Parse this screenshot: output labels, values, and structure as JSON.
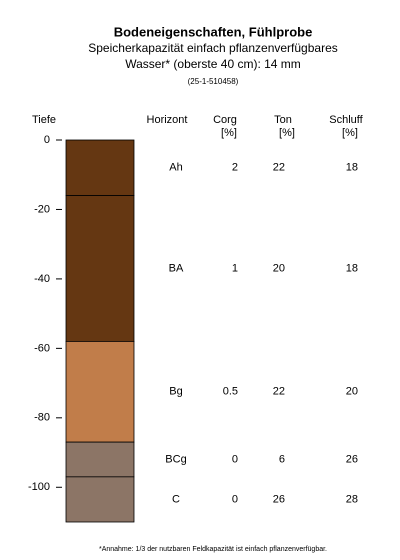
{
  "chart_data": {
    "type": "soil-profile",
    "title": "Bodeneigenschaften, Fühlprobe",
    "subtitle": [
      "Speicherkapazität einfach pflanzenverfügbares",
      "Wasser* (oberste 40 cm): 14 mm"
    ],
    "id": "(25-1-510458)",
    "y_label": "Tiefe",
    "horizon_header": "Horizont",
    "columns": [
      {
        "name": "Corg",
        "unit": "[%]"
      },
      {
        "name": "Ton",
        "unit": "[%]"
      },
      {
        "name": "Schluff",
        "unit": "[%]"
      }
    ],
    "ylim": [
      -110,
      0
    ],
    "yticks": [
      0,
      -20,
      -40,
      -60,
      -80,
      -100
    ],
    "layers": [
      {
        "name": "Ah",
        "top": 0,
        "bottom": -16,
        "color": "#653712",
        "values": [
          2,
          22,
          18
        ]
      },
      {
        "name": "BA",
        "top": -16,
        "bottom": -58,
        "color": "#653712",
        "values": [
          1,
          20,
          18
        ]
      },
      {
        "name": "Bg",
        "top": -58,
        "bottom": -87,
        "color": "#c17d4a",
        "values": [
          0.5,
          22,
          20
        ]
      },
      {
        "name": "BCg",
        "top": -87,
        "bottom": -97,
        "color": "#8c7566",
        "values": [
          0,
          6,
          26
        ]
      },
      {
        "name": "C",
        "top": -97,
        "bottom": -110,
        "color": "#8c7566",
        "values": [
          0,
          26,
          28
        ]
      }
    ],
    "footnote": "*Annahme: 1/3 der nutzbaren Feldkapazität ist einfach pflanzenverfügbar."
  }
}
